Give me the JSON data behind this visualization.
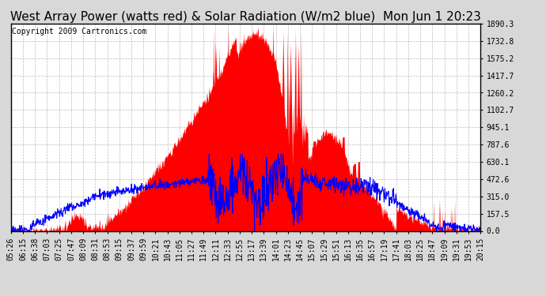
{
  "title": "West Array Power (watts red) & Solar Radiation (W/m2 blue)  Mon Jun 1 20:23",
  "copyright": "Copyright 2009 Cartronics.com",
  "ylim": [
    0,
    1890.3
  ],
  "yticks": [
    0,
    157.5,
    315.0,
    472.6,
    630.1,
    787.6,
    945.1,
    1102.7,
    1260.2,
    1417.7,
    1575.2,
    1732.8,
    1890.3
  ],
  "ytick_labels": [
    "0.0",
    "157.5",
    "315.0",
    "472.6",
    "630.1",
    "787.6",
    "945.1",
    "1102.7",
    "1260.2",
    "1417.7",
    "1575.2",
    "1732.8",
    "1890.3"
  ],
  "xtick_labels": [
    "05:26",
    "06:15",
    "06:38",
    "07:03",
    "07:25",
    "07:47",
    "08:09",
    "08:31",
    "08:53",
    "09:15",
    "09:37",
    "09:59",
    "10:21",
    "10:43",
    "11:05",
    "11:27",
    "11:49",
    "12:11",
    "12:33",
    "12:55",
    "13:17",
    "13:39",
    "14:01",
    "14:23",
    "14:45",
    "15:07",
    "15:29",
    "15:51",
    "16:13",
    "16:35",
    "16:57",
    "17:19",
    "17:41",
    "18:03",
    "18:25",
    "18:47",
    "19:09",
    "19:31",
    "19:53",
    "20:15"
  ],
  "bg_color": "#d8d8d8",
  "plot_bg_color": "#ffffff",
  "red_color": "#ff0000",
  "blue_color": "#0000ff",
  "title_fontsize": 11,
  "tick_fontsize": 7,
  "copyright_fontsize": 7
}
